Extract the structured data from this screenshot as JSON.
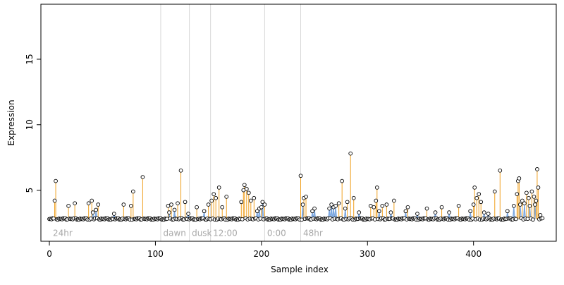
{
  "chart_data": {
    "type": "scatter",
    "title": "",
    "xlabel": "Sample index",
    "ylabel": "Expression",
    "xlim": [
      -8,
      478
    ],
    "ylim": [
      1.1,
      19.2
    ],
    "x_ticks": [
      0,
      100,
      200,
      300,
      400
    ],
    "y_ticks": [
      5,
      10,
      15
    ],
    "grid": false,
    "legend": "none",
    "baseline": 2.8,
    "colors": {
      "peak_stem": "#f0a020",
      "profile_line": "#7ba7e0",
      "divider": "#d8d8d8",
      "segment_label": "#a8a8a8",
      "point_fill": "#ffffff",
      "point_stroke": "#000000"
    },
    "segments": [
      {
        "label": "24hr",
        "x_label": 2,
        "x_divider": null
      },
      {
        "label": "dawn",
        "x_label": 106,
        "x_divider": 105
      },
      {
        "label": "dusk",
        "x_label": 133,
        "x_divider": 132
      },
      {
        "label": "12:00",
        "x_label": 153,
        "x_divider": 152
      },
      {
        "label": "0:00",
        "x_label": 204,
        "x_divider": 203
      },
      {
        "label": "48hr",
        "x_label": 238,
        "x_divider": 237
      }
    ],
    "peaks": [
      {
        "x": 5,
        "y": 4.2
      },
      {
        "x": 6,
        "y": 5.7
      },
      {
        "x": 18,
        "y": 3.8
      },
      {
        "x": 24,
        "y": 4.0
      },
      {
        "x": 37,
        "y": 4.0
      },
      {
        "x": 40,
        "y": 4.2
      },
      {
        "x": 46,
        "y": 3.9
      },
      {
        "x": 70,
        "y": 3.9
      },
      {
        "x": 77,
        "y": 3.8
      },
      {
        "x": 79,
        "y": 4.9
      },
      {
        "x": 88,
        "y": 6.0
      },
      {
        "x": 112,
        "y": 3.8
      },
      {
        "x": 115,
        "y": 3.9
      },
      {
        "x": 121,
        "y": 4.0
      },
      {
        "x": 124,
        "y": 6.5
      },
      {
        "x": 128,
        "y": 4.1
      },
      {
        "x": 139,
        "y": 3.7
      },
      {
        "x": 150,
        "y": 3.9
      },
      {
        "x": 153,
        "y": 4.2
      },
      {
        "x": 155,
        "y": 4.7
      },
      {
        "x": 157,
        "y": 4.4
      },
      {
        "x": 160,
        "y": 5.2
      },
      {
        "x": 163,
        "y": 3.7
      },
      {
        "x": 167,
        "y": 4.5
      },
      {
        "x": 181,
        "y": 4.1
      },
      {
        "x": 183,
        "y": 5.0
      },
      {
        "x": 184,
        "y": 5.4
      },
      {
        "x": 186,
        "y": 5.1
      },
      {
        "x": 188,
        "y": 4.8
      },
      {
        "x": 190,
        "y": 4.2
      },
      {
        "x": 193,
        "y": 4.4
      },
      {
        "x": 200,
        "y": 3.7
      },
      {
        "x": 203,
        "y": 3.9
      },
      {
        "x": 237,
        "y": 6.1
      },
      {
        "x": 240,
        "y": 4.4
      },
      {
        "x": 242,
        "y": 4.5
      },
      {
        "x": 273,
        "y": 4.0
      },
      {
        "x": 276,
        "y": 5.7
      },
      {
        "x": 281,
        "y": 4.1
      },
      {
        "x": 284,
        "y": 7.8
      },
      {
        "x": 287,
        "y": 4.4
      },
      {
        "x": 303,
        "y": 3.8
      },
      {
        "x": 306,
        "y": 3.7
      },
      {
        "x": 308,
        "y": 4.2
      },
      {
        "x": 309,
        "y": 5.2
      },
      {
        "x": 314,
        "y": 3.8
      },
      {
        "x": 318,
        "y": 3.9
      },
      {
        "x": 325,
        "y": 4.2
      },
      {
        "x": 338,
        "y": 3.7
      },
      {
        "x": 356,
        "y": 3.6
      },
      {
        "x": 370,
        "y": 3.7
      },
      {
        "x": 386,
        "y": 3.8
      },
      {
        "x": 400,
        "y": 3.9
      },
      {
        "x": 401,
        "y": 5.2
      },
      {
        "x": 403,
        "y": 4.4
      },
      {
        "x": 405,
        "y": 4.7
      },
      {
        "x": 407,
        "y": 4.1
      },
      {
        "x": 420,
        "y": 4.9
      },
      {
        "x": 425,
        "y": 6.5
      },
      {
        "x": 441,
        "y": 4.7
      },
      {
        "x": 442,
        "y": 5.7
      },
      {
        "x": 443,
        "y": 5.9
      },
      {
        "x": 446,
        "y": 4.2
      },
      {
        "x": 450,
        "y": 4.8
      },
      {
        "x": 452,
        "y": 4.4
      },
      {
        "x": 455,
        "y": 4.9
      },
      {
        "x": 457,
        "y": 4.5
      },
      {
        "x": 459,
        "y": 4.2
      },
      {
        "x": 460,
        "y": 6.6
      },
      {
        "x": 461,
        "y": 5.2
      }
    ],
    "bumps": [
      {
        "x": 41,
        "y": 3.3
      },
      {
        "x": 44,
        "y": 3.5
      },
      {
        "x": 61,
        "y": 3.2
      },
      {
        "x": 113,
        "y": 3.3
      },
      {
        "x": 118,
        "y": 3.5
      },
      {
        "x": 131,
        "y": 3.2
      },
      {
        "x": 146,
        "y": 3.4
      },
      {
        "x": 196,
        "y": 3.4
      },
      {
        "x": 198,
        "y": 3.6
      },
      {
        "x": 201,
        "y": 4.1
      },
      {
        "x": 239,
        "y": 3.9
      },
      {
        "x": 248,
        "y": 3.4
      },
      {
        "x": 250,
        "y": 3.6
      },
      {
        "x": 264,
        "y": 3.6
      },
      {
        "x": 266,
        "y": 3.9
      },
      {
        "x": 268,
        "y": 3.7
      },
      {
        "x": 270,
        "y": 3.8
      },
      {
        "x": 279,
        "y": 3.6
      },
      {
        "x": 292,
        "y": 3.3
      },
      {
        "x": 311,
        "y": 3.4
      },
      {
        "x": 322,
        "y": 3.3
      },
      {
        "x": 336,
        "y": 3.4
      },
      {
        "x": 347,
        "y": 3.2
      },
      {
        "x": 364,
        "y": 3.3
      },
      {
        "x": 377,
        "y": 3.3
      },
      {
        "x": 397,
        "y": 3.4
      },
      {
        "x": 410,
        "y": 3.3
      },
      {
        "x": 414,
        "y": 3.2
      },
      {
        "x": 432,
        "y": 3.4
      },
      {
        "x": 438,
        "y": 3.8
      },
      {
        "x": 444,
        "y": 3.9
      },
      {
        "x": 448,
        "y": 4.0
      },
      {
        "x": 453,
        "y": 3.8
      },
      {
        "x": 458,
        "y": 3.9
      },
      {
        "x": 463,
        "y": 3.1
      }
    ]
  }
}
